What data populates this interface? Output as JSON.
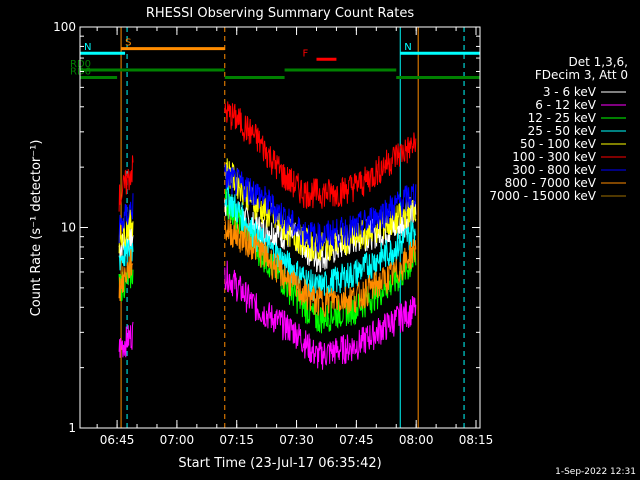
{
  "chart_data": {
    "type": "line",
    "title": "RHESSI Observing Summary Count Rates",
    "xlabel": "Start Time (23-Jul-17 06:35:42)",
    "ylabel": "Count Rate (s⁻¹ detector⁻¹)",
    "y_scale": "log",
    "ylim": [
      1,
      100
    ],
    "xlim_minutes": [
      "06:35:42",
      "08:16:00"
    ],
    "x_ticks": [
      "06:45",
      "07:00",
      "07:15",
      "07:30",
      "07:45",
      "08:00",
      "08:15"
    ],
    "y_ticks": [
      "1",
      "10",
      "100"
    ],
    "date_stamp": "1-Sep-2022 12:31",
    "legend_header": [
      "Det 1,3,6,",
      "FDecim 3, Att 0"
    ],
    "series": [
      {
        "name": "3 - 6 keV",
        "color": "#ffffff",
        "points": [
          [
            "06:45:30",
            8
          ],
          [
            "06:49:00",
            9
          ],
          [
            "07:12:00",
            13
          ],
          [
            "07:20:00",
            10
          ],
          [
            "07:30:00",
            9
          ],
          [
            "07:35:00",
            7
          ],
          [
            "07:45:00",
            9
          ],
          [
            "07:55:00",
            10
          ],
          [
            "08:00:00",
            12
          ]
        ]
      },
      {
        "name": "6 - 12 keV",
        "color": "#ff00ff",
        "points": [
          [
            "06:45:30",
            2.5
          ],
          [
            "06:49:00",
            3
          ],
          [
            "07:12:00",
            6
          ],
          [
            "07:20:00",
            4
          ],
          [
            "07:30:00",
            3
          ],
          [
            "07:35:00",
            2.3
          ],
          [
            "07:45:00",
            2.6
          ],
          [
            "07:55:00",
            3.5
          ],
          [
            "08:00:00",
            4
          ]
        ]
      },
      {
        "name": "12 - 25 keV",
        "color": "#00ff00",
        "points": [
          [
            "06:45:30",
            5
          ],
          [
            "06:49:00",
            6
          ],
          [
            "07:12:00",
            14
          ],
          [
            "07:20:00",
            8
          ],
          [
            "07:30:00",
            4.5
          ],
          [
            "07:35:00",
            3.5
          ],
          [
            "07:45:00",
            4
          ],
          [
            "07:55:00",
            5.5
          ],
          [
            "08:00:00",
            7
          ]
        ]
      },
      {
        "name": "25 - 50 keV",
        "color": "#00ffff",
        "points": [
          [
            "06:45:30",
            7
          ],
          [
            "06:49:00",
            8
          ],
          [
            "07:12:00",
            15
          ],
          [
            "07:20:00",
            9
          ],
          [
            "07:30:00",
            6
          ],
          [
            "07:35:00",
            5
          ],
          [
            "07:45:00",
            6
          ],
          [
            "07:55:00",
            8
          ],
          [
            "08:00:00",
            10
          ]
        ]
      },
      {
        "name": "50 - 100 keV",
        "color": "#ffff00",
        "points": [
          [
            "06:45:30",
            9
          ],
          [
            "06:49:00",
            11
          ],
          [
            "07:12:00",
            20
          ],
          [
            "07:20:00",
            13
          ],
          [
            "07:30:00",
            9
          ],
          [
            "07:35:00",
            8
          ],
          [
            "07:45:00",
            9
          ],
          [
            "07:55:00",
            11
          ],
          [
            "08:00:00",
            13
          ]
        ]
      },
      {
        "name": "100 - 300 keV",
        "color": "#ff0000",
        "points": [
          [
            "06:45:30",
            14
          ],
          [
            "06:49:00",
            20
          ],
          [
            "07:12:00",
            38
          ],
          [
            "07:15:00",
            35
          ],
          [
            "07:20:00",
            28
          ],
          [
            "07:27:00",
            18
          ],
          [
            "07:32:00",
            15
          ],
          [
            "07:40:00",
            15
          ],
          [
            "07:47:00",
            17
          ],
          [
            "07:55:00",
            23
          ],
          [
            "08:00:00",
            26
          ]
        ]
      },
      {
        "name": "300 - 800 keV",
        "color": "#0000ff",
        "points": [
          [
            "06:45:30",
            10
          ],
          [
            "06:49:00",
            13
          ],
          [
            "07:12:00",
            18
          ],
          [
            "07:20:00",
            15
          ],
          [
            "07:30:00",
            10
          ],
          [
            "07:35:00",
            9
          ],
          [
            "07:45:00",
            10
          ],
          [
            "07:55:00",
            13
          ],
          [
            "08:00:00",
            15
          ]
        ]
      },
      {
        "name": "800 - 7000 keV",
        "color": "#ff8c00",
        "points": [
          [
            "06:45:30",
            5
          ],
          [
            "06:49:00",
            7
          ],
          [
            "07:12:00",
            10
          ],
          [
            "07:20:00",
            8
          ],
          [
            "07:30:00",
            5
          ],
          [
            "07:35:00",
            4.3
          ],
          [
            "07:45:00",
            4.5
          ],
          [
            "07:55:00",
            6
          ],
          [
            "08:00:00",
            8
          ]
        ]
      },
      {
        "name": "7000 - 15000 keV",
        "color": "#a07000",
        "points": []
      }
    ],
    "annotations": [
      {
        "label": "S",
        "color": "#ff8c00",
        "x_start": "06:46:00",
        "x_end": "07:12:00",
        "y": 78
      },
      {
        "label": "N",
        "color": "#00ffff",
        "x_start": "06:35:42",
        "x_end": "06:47:00",
        "y": 74
      },
      {
        "label": "N",
        "color": "#00ffff",
        "x_start": "07:56:00",
        "x_end": "08:16:00",
        "y": 74
      },
      {
        "label": "F",
        "color": "#ff0000",
        "x_start": "07:35:00",
        "x_end": "07:40:00",
        "y": 69
      },
      {
        "label": "RD0",
        "color": "#008000",
        "x_start": "06:35:42",
        "x_end": "07:12:00",
        "y": 61
      },
      {
        "label": "RD6",
        "color": "#008000",
        "x_start": "06:35:42",
        "x_end": "06:45:00",
        "y": 56
      },
      {
        "label": "",
        "color": "#008000",
        "x_start": "07:12:00",
        "x_end": "07:27:00",
        "y": 56
      },
      {
        "label": "",
        "color": "#008000",
        "x_start": "07:27:00",
        "x_end": "07:55:00",
        "y": 61
      },
      {
        "label": "",
        "color": "#008000",
        "x_start": "07:55:00",
        "x_end": "08:16:00",
        "y": 56
      }
    ],
    "vertical_markers": [
      {
        "x": "06:35:42",
        "color": "#00ffff",
        "style": "solid"
      },
      {
        "x": "06:46:00",
        "color": "#ff8c00",
        "style": "solid"
      },
      {
        "x": "06:47:30",
        "color": "#00ffff",
        "style": "dashed"
      },
      {
        "x": "07:12:00",
        "color": "#ff8c00",
        "style": "dashed"
      },
      {
        "x": "07:56:00",
        "color": "#00ffff",
        "style": "solid"
      },
      {
        "x": "08:00:30",
        "color": "#ff8c00",
        "style": "solid"
      },
      {
        "x": "08:12:00",
        "color": "#00ffff",
        "style": "dashed"
      }
    ],
    "gaps": [
      [
        "06:35:42",
        "06:45:00"
      ],
      [
        "06:49:00",
        "07:12:00"
      ],
      [
        "08:02:00",
        "08:16:00"
      ]
    ]
  }
}
